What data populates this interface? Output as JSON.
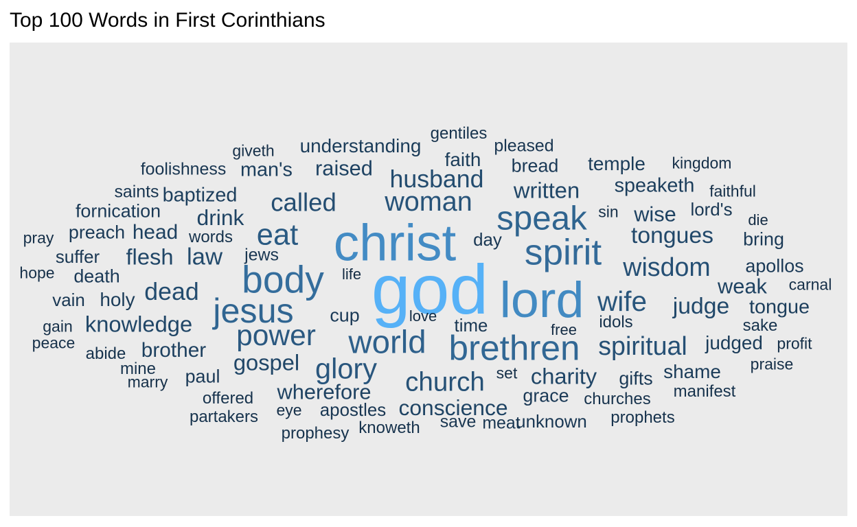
{
  "chart_data": {
    "type": "wordcloud",
    "title": "Top 100 Words in First Corinthians",
    "color_scale": {
      "low": "#132b43",
      "high": "#56b1f7"
    },
    "words": [
      {
        "text": "god",
        "weight": 1.0
      },
      {
        "text": "christ",
        "weight": 0.72
      },
      {
        "text": "lord",
        "weight": 0.71
      },
      {
        "text": "body",
        "weight": 0.52
      },
      {
        "text": "spirit",
        "weight": 0.5
      },
      {
        "text": "brethren",
        "weight": 0.48
      },
      {
        "text": "jesus",
        "weight": 0.47
      },
      {
        "text": "speak",
        "weight": 0.46
      },
      {
        "text": "world",
        "weight": 0.44
      },
      {
        "text": "eat",
        "weight": 0.4
      },
      {
        "text": "power",
        "weight": 0.39
      },
      {
        "text": "glory",
        "weight": 0.38
      },
      {
        "text": "wife",
        "weight": 0.37
      },
      {
        "text": "woman",
        "weight": 0.36
      },
      {
        "text": "church",
        "weight": 0.35
      },
      {
        "text": "spiritual",
        "weight": 0.34
      },
      {
        "text": "wisdom",
        "weight": 0.34
      },
      {
        "text": "called",
        "weight": 0.33
      },
      {
        "text": "husband",
        "weight": 0.32
      },
      {
        "text": "dead",
        "weight": 0.32
      },
      {
        "text": "law",
        "weight": 0.31
      },
      {
        "text": "tongues",
        "weight": 0.3
      },
      {
        "text": "judge",
        "weight": 0.3
      },
      {
        "text": "written",
        "weight": 0.29
      },
      {
        "text": "gospel",
        "weight": 0.29
      },
      {
        "text": "charity",
        "weight": 0.29
      },
      {
        "text": "flesh",
        "weight": 0.29
      },
      {
        "text": "knowledge",
        "weight": 0.29
      },
      {
        "text": "drink",
        "weight": 0.28
      },
      {
        "text": "conscience",
        "weight": 0.28
      },
      {
        "text": "wherefore",
        "weight": 0.27
      },
      {
        "text": "raised",
        "weight": 0.27
      },
      {
        "text": "weak",
        "weight": 0.27
      },
      {
        "text": "wise",
        "weight": 0.27
      },
      {
        "text": "brother",
        "weight": 0.26
      },
      {
        "text": "head",
        "weight": 0.26
      },
      {
        "text": "baptized",
        "weight": 0.25
      },
      {
        "text": "tongue",
        "weight": 0.25
      },
      {
        "text": "man's",
        "weight": 0.25
      },
      {
        "text": "speaketh",
        "weight": 0.25
      },
      {
        "text": "judged",
        "weight": 0.24
      },
      {
        "text": "holy",
        "weight": 0.24
      },
      {
        "text": "understanding",
        "weight": 0.24
      },
      {
        "text": "faith",
        "weight": 0.24
      },
      {
        "text": "shame",
        "weight": 0.24
      },
      {
        "text": "temple",
        "weight": 0.24
      },
      {
        "text": "apollos",
        "weight": 0.23
      },
      {
        "text": "bread",
        "weight": 0.23
      },
      {
        "text": "gifts",
        "weight": 0.23
      },
      {
        "text": "grace",
        "weight": 0.23
      },
      {
        "text": "cup",
        "weight": 0.23
      },
      {
        "text": "preach",
        "weight": 0.23
      },
      {
        "text": "fornication",
        "weight": 0.23
      },
      {
        "text": "death",
        "weight": 0.23
      },
      {
        "text": "paul",
        "weight": 0.23
      },
      {
        "text": "bring",
        "weight": 0.23
      },
      {
        "text": "apostles",
        "weight": 0.22
      },
      {
        "text": "suffer",
        "weight": 0.22
      },
      {
        "text": "lord's",
        "weight": 0.22
      },
      {
        "text": "unknown",
        "weight": 0.22
      },
      {
        "text": "vain",
        "weight": 0.22
      },
      {
        "text": "day",
        "weight": 0.22
      },
      {
        "text": "time",
        "weight": 0.22
      },
      {
        "text": "jews",
        "weight": 0.21
      },
      {
        "text": "foolishness",
        "weight": 0.21
      },
      {
        "text": "save",
        "weight": 0.21
      },
      {
        "text": "meat",
        "weight": 0.21
      },
      {
        "text": "pleased",
        "weight": 0.21
      },
      {
        "text": "saints",
        "weight": 0.21
      },
      {
        "text": "offered",
        "weight": 0.2
      },
      {
        "text": "churches",
        "weight": 0.2
      },
      {
        "text": "prophets",
        "weight": 0.2
      },
      {
        "text": "manifest",
        "weight": 0.2
      },
      {
        "text": "sake",
        "weight": 0.2
      },
      {
        "text": "prophesy",
        "weight": 0.2
      },
      {
        "text": "words",
        "weight": 0.2
      },
      {
        "text": "partakers",
        "weight": 0.2
      },
      {
        "text": "mine",
        "weight": 0.2
      },
      {
        "text": "gentiles",
        "weight": 0.2
      },
      {
        "text": "abide",
        "weight": 0.2
      },
      {
        "text": "knoweth",
        "weight": 0.2
      },
      {
        "text": "idols",
        "weight": 0.2
      },
      {
        "text": "profit",
        "weight": 0.19
      },
      {
        "text": "kingdom",
        "weight": 0.19
      },
      {
        "text": "faithful",
        "weight": 0.19
      },
      {
        "text": "giveth",
        "weight": 0.19
      },
      {
        "text": "sin",
        "weight": 0.19
      },
      {
        "text": "set",
        "weight": 0.19
      },
      {
        "text": "peace",
        "weight": 0.19
      },
      {
        "text": "carnal",
        "weight": 0.19
      },
      {
        "text": "marry",
        "weight": 0.19
      },
      {
        "text": "gain",
        "weight": 0.19
      },
      {
        "text": "eye",
        "weight": 0.19
      },
      {
        "text": "hope",
        "weight": 0.19
      },
      {
        "text": "praise",
        "weight": 0.19
      },
      {
        "text": "pray",
        "weight": 0.19
      },
      {
        "text": "love",
        "weight": 0.18
      },
      {
        "text": "free",
        "weight": 0.18
      },
      {
        "text": "die",
        "weight": 0.18
      },
      {
        "text": "life",
        "weight": 0.18
      }
    ]
  }
}
